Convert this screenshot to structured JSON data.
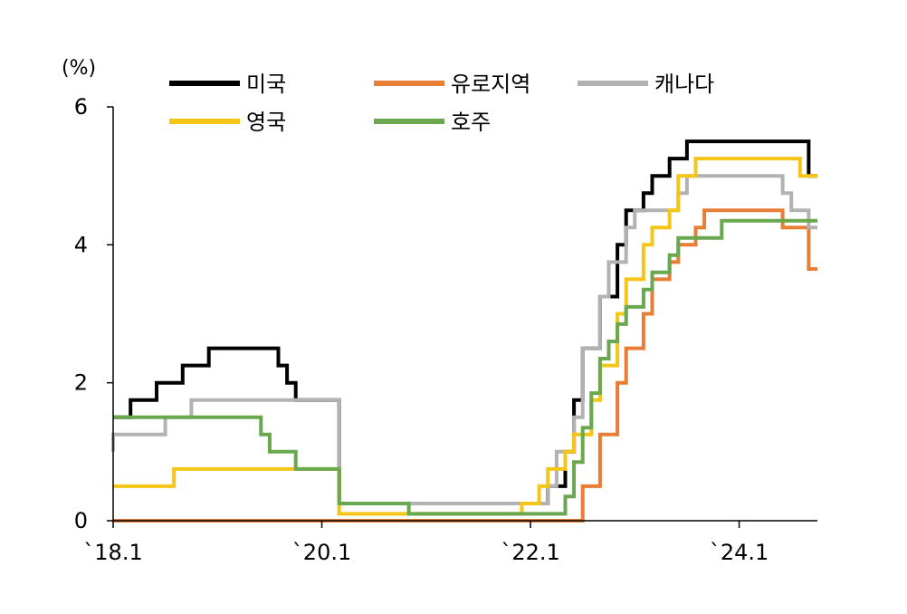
{
  "chart_data": {
    "type": "line",
    "step": true,
    "unit_label": "(%)",
    "x_range": [
      "2018-01",
      "2024-09"
    ],
    "x_ticks": [
      {
        "date": "2018-01",
        "label": "`18.1"
      },
      {
        "date": "2020-01",
        "label": "`20.1"
      },
      {
        "date": "2022-01",
        "label": "`22.1"
      },
      {
        "date": "2024-01",
        "label": "`24.1"
      }
    ],
    "ylim": [
      0,
      6
    ],
    "y_ticks": [
      0,
      2,
      4,
      6
    ],
    "grid": false,
    "legend_position": "top",
    "series": [
      {
        "name": "미국",
        "color": "#000000",
        "steps": [
          [
            "2018-01",
            1.5
          ],
          [
            "2018-03",
            1.75
          ],
          [
            "2018-06",
            2.0
          ],
          [
            "2018-09",
            2.25
          ],
          [
            "2018-12",
            2.5
          ],
          [
            "2019-08",
            2.25
          ],
          [
            "2019-09",
            2.0
          ],
          [
            "2019-10",
            1.75
          ],
          [
            "2020-03",
            0.25
          ],
          [
            "2022-03",
            0.5
          ],
          [
            "2022-05",
            1.0
          ],
          [
            "2022-06",
            1.75
          ],
          [
            "2022-07",
            2.5
          ],
          [
            "2022-09",
            3.25
          ],
          [
            "2022-11",
            4.0
          ],
          [
            "2022-12",
            4.5
          ],
          [
            "2023-02",
            4.75
          ],
          [
            "2023-03",
            5.0
          ],
          [
            "2023-05",
            5.25
          ],
          [
            "2023-07",
            5.5
          ],
          [
            "2024-09",
            5.0
          ]
        ]
      },
      {
        "name": "유로지역",
        "color": "#e87e36",
        "steps": [
          [
            "2018-01",
            0.0
          ],
          [
            "2022-07",
            0.5
          ],
          [
            "2022-09",
            1.25
          ],
          [
            "2022-11",
            2.0
          ],
          [
            "2022-12",
            2.5
          ],
          [
            "2023-02",
            3.0
          ],
          [
            "2023-03",
            3.5
          ],
          [
            "2023-05",
            3.75
          ],
          [
            "2023-06",
            4.0
          ],
          [
            "2023-08",
            4.25
          ],
          [
            "2023-09",
            4.5
          ],
          [
            "2024-06",
            4.25
          ],
          [
            "2024-09",
            3.65
          ]
        ]
      },
      {
        "name": "캐나다",
        "color": "#b2b2b2",
        "steps": [
          [
            "2018-01",
            1.0
          ],
          [
            "2018-01",
            1.25
          ],
          [
            "2018-07",
            1.5
          ],
          [
            "2018-10",
            1.75
          ],
          [
            "2020-03",
            0.25
          ],
          [
            "2022-03",
            0.5
          ],
          [
            "2022-04",
            1.0
          ],
          [
            "2022-06",
            1.5
          ],
          [
            "2022-07",
            2.5
          ],
          [
            "2022-09",
            3.25
          ],
          [
            "2022-10",
            3.75
          ],
          [
            "2022-12",
            4.25
          ],
          [
            "2023-01",
            4.5
          ],
          [
            "2023-06",
            4.75
          ],
          [
            "2023-07",
            5.0
          ],
          [
            "2024-06",
            4.75
          ],
          [
            "2024-07",
            4.5
          ],
          [
            "2024-09",
            4.25
          ]
        ]
      },
      {
        "name": "영국",
        "color": "#f5c518",
        "steps": [
          [
            "2018-01",
            0.5
          ],
          [
            "2018-08",
            0.75
          ],
          [
            "2020-03",
            0.1
          ],
          [
            "2021-12",
            0.25
          ],
          [
            "2022-02",
            0.5
          ],
          [
            "2022-03",
            0.75
          ],
          [
            "2022-05",
            1.0
          ],
          [
            "2022-06",
            1.25
          ],
          [
            "2022-08",
            1.75
          ],
          [
            "2022-09",
            2.25
          ],
          [
            "2022-11",
            3.0
          ],
          [
            "2022-12",
            3.5
          ],
          [
            "2023-02",
            4.0
          ],
          [
            "2023-03",
            4.25
          ],
          [
            "2023-05",
            4.5
          ],
          [
            "2023-06",
            5.0
          ],
          [
            "2023-08",
            5.25
          ],
          [
            "2024-08",
            5.0
          ]
        ]
      },
      {
        "name": "호주",
        "color": "#6aa84f",
        "steps": [
          [
            "2018-01",
            1.5
          ],
          [
            "2019-06",
            1.25
          ],
          [
            "2019-07",
            1.0
          ],
          [
            "2019-10",
            0.75
          ],
          [
            "2020-03",
            0.25
          ],
          [
            "2020-11",
            0.1
          ],
          [
            "2022-05",
            0.35
          ],
          [
            "2022-06",
            0.85
          ],
          [
            "2022-07",
            1.35
          ],
          [
            "2022-08",
            1.85
          ],
          [
            "2022-09",
            2.35
          ],
          [
            "2022-10",
            2.6
          ],
          [
            "2022-11",
            2.85
          ],
          [
            "2022-12",
            3.1
          ],
          [
            "2023-02",
            3.35
          ],
          [
            "2023-03",
            3.6
          ],
          [
            "2023-05",
            3.85
          ],
          [
            "2023-06",
            4.1
          ],
          [
            "2023-11",
            4.35
          ],
          [
            "2024-09",
            4.35
          ]
        ]
      }
    ]
  }
}
